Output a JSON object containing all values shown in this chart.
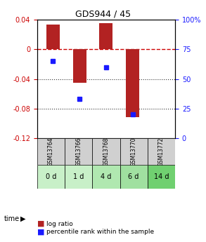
{
  "title": "GDS944 / 45",
  "categories": [
    "GSM13764",
    "GSM13766",
    "GSM13768",
    "GSM13770",
    "GSM13772"
  ],
  "time_labels": [
    "0 d",
    "1 d",
    "4 d",
    "6 d",
    "14 d"
  ],
  "log_ratios": [
    0.033,
    -0.045,
    0.035,
    -0.091,
    0.0
  ],
  "percentile_ranks": [
    65,
    33,
    60,
    20,
    null
  ],
  "bar_color": "#b22222",
  "dot_color": "#1a1aff",
  "left_ylim": [
    0.04,
    -0.12
  ],
  "right_ylim": [
    100,
    0
  ],
  "left_yticks": [
    0.04,
    0.0,
    -0.04,
    -0.08,
    -0.12
  ],
  "right_yticks": [
    100,
    75,
    50,
    25,
    0
  ],
  "left_ytick_labels": [
    "0.04",
    "0",
    "-0.04",
    "-0.08",
    "-0.12"
  ],
  "right_ytick_labels": [
    "100%",
    "75",
    "50",
    "25",
    "0"
  ],
  "gsm_bg_color": "#d0d0d0",
  "time_bg_colors": [
    "#c8f0c8",
    "#c8f0c8",
    "#b0e8b0",
    "#a0e0a0",
    "#70d070"
  ],
  "legend_labels": [
    "log ratio",
    "percentile rank within the sample"
  ],
  "zero_line_color": "#cc0000",
  "dotted_line_color": "#333333",
  "bar_width": 0.5
}
